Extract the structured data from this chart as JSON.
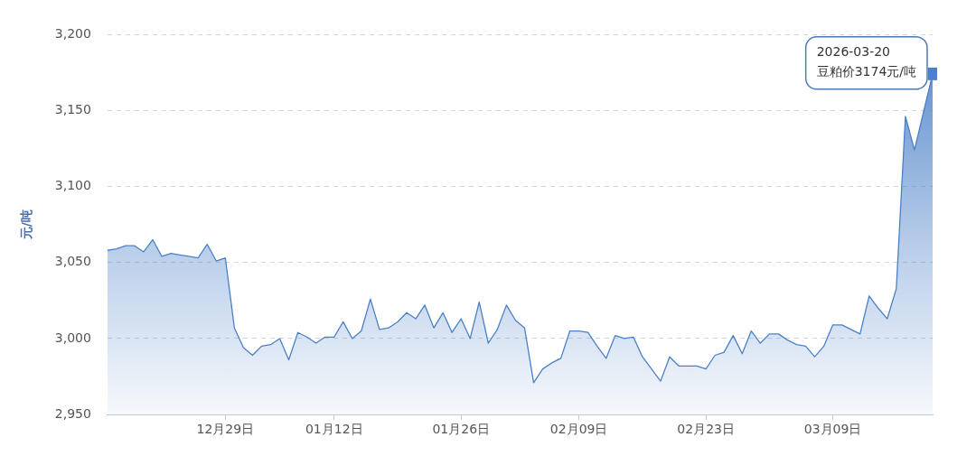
{
  "chart_data": {
    "type": "area",
    "ylabel": "元/吨",
    "categories": [
      null,
      null,
      null,
      null,
      null,
      null,
      null,
      null,
      null,
      null,
      null,
      null,
      null,
      "12月29日",
      null,
      null,
      null,
      null,
      null,
      null,
      null,
      null,
      null,
      null,
      null,
      "01月12日",
      null,
      null,
      null,
      null,
      null,
      null,
      null,
      null,
      null,
      null,
      null,
      null,
      null,
      "01月26日",
      null,
      null,
      null,
      null,
      null,
      null,
      null,
      null,
      null,
      null,
      null,
      null,
      "02月09日",
      null,
      null,
      null,
      null,
      null,
      null,
      null,
      null,
      null,
      null,
      null,
      null,
      null,
      "02月23日",
      null,
      null,
      null,
      null,
      null,
      null,
      null,
      null,
      null,
      null,
      null,
      null,
      null,
      "03月09日",
      null,
      null,
      null,
      null,
      null,
      null,
      null,
      null,
      null,
      null,
      null
    ],
    "series": [
      {
        "color": "#4a80c8",
        "values": [
          3058,
          3059,
          3061,
          3061,
          3057,
          3065,
          3054,
          3056,
          3055,
          3054,
          3053,
          3062,
          3051,
          3053,
          3007,
          2994,
          2989,
          2995,
          2996,
          3000,
          2986,
          3004,
          3001,
          2997,
          3001,
          3001,
          3011,
          3000,
          3005,
          3026,
          3006,
          3007,
          3011,
          3017,
          3013,
          3022,
          3007,
          3017,
          3004,
          3013,
          3000,
          3024,
          2997,
          3006,
          3022,
          3012,
          3007,
          2971,
          2980,
          2984,
          2987,
          3005,
          3005,
          3004,
          2995,
          2987,
          3002,
          3000,
          3001,
          2988,
          2980,
          2972,
          2988,
          2982,
          2982,
          2982,
          2980,
          2989,
          2991,
          3002,
          2990,
          3005,
          2997,
          3003,
          3003,
          2999,
          2996,
          2995,
          2988,
          2995,
          3009,
          3009,
          3006,
          3003,
          3028,
          3020,
          3013,
          3033,
          3146,
          3124,
          3149,
          3174
        ]
      }
    ],
    "ylim": [
      2950,
      3200
    ],
    "yticks": [
      {
        "value": 2950,
        "label": "2,950"
      },
      {
        "value": 3000,
        "label": "3,000"
      },
      {
        "value": 3050,
        "label": "3,050"
      },
      {
        "value": 3100,
        "label": "3,100"
      },
      {
        "value": 3150,
        "label": "3,150"
      },
      {
        "value": 3200,
        "label": "3,200"
      }
    ],
    "grid": "y",
    "legend": false,
    "marker": "none",
    "line_style": "solid",
    "annotations": [
      "2026-03-20\n豆粕价3174元/吨"
    ]
  }
}
